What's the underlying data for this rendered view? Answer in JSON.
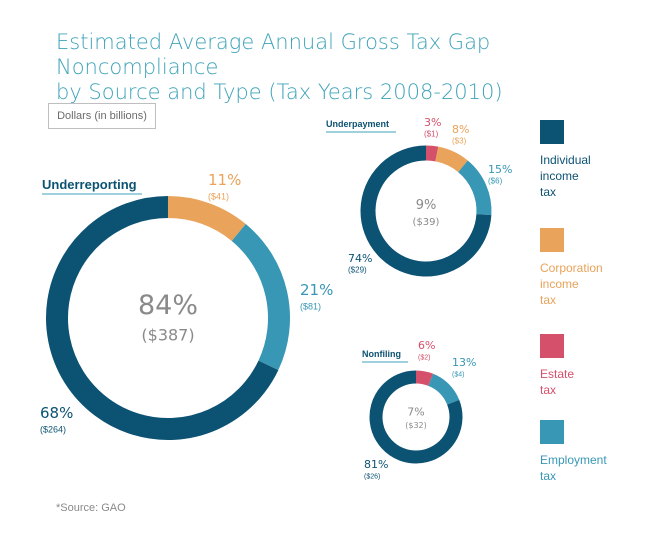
{
  "title_line1": "Estimated Average Annual Gross Tax Gap Noncompliance",
  "title_line2": "by Source and Type (Tax Years 2008-2010)",
  "unit_label": "Dollars (in billions)",
  "source": "*Source: GAO",
  "colors": {
    "individual": "#0c5273",
    "corporation": "#e9a35a",
    "estate": "#d5506b",
    "employment": "#3797b5",
    "title": "#3ea3b8"
  },
  "legend": [
    {
      "key": "individual",
      "label": "Individual\nincome\ntax"
    },
    {
      "key": "corporation",
      "label": "Corporation\nincome\ntax"
    },
    {
      "key": "estate",
      "label": "Estate\ntax"
    },
    {
      "key": "employment",
      "label": "Employment\ntax"
    }
  ],
  "chart_data": [
    {
      "type": "pie",
      "title": "Underreporting",
      "center_pct": "84%",
      "center_value": "($387)",
      "slices": [
        {
          "name": "Corporation income tax",
          "key": "corporation",
          "pct": 11,
          "value": 41,
          "pct_label": "11%",
          "value_label": "($41)"
        },
        {
          "name": "Employment tax",
          "key": "employment",
          "pct": 21,
          "value": 81,
          "pct_label": "21%",
          "value_label": "($81)"
        },
        {
          "name": "Individual income tax",
          "key": "individual",
          "pct": 68,
          "value": 264,
          "pct_label": "68%",
          "value_label": "($264)"
        }
      ]
    },
    {
      "type": "pie",
      "title": "Underpayment",
      "center_pct": "9%",
      "center_value": "($39)",
      "slices": [
        {
          "name": "Estate tax",
          "key": "estate",
          "pct": 3,
          "value": 1,
          "pct_label": "3%",
          "value_label": "($1)"
        },
        {
          "name": "Corporation income tax",
          "key": "corporation",
          "pct": 8,
          "value": 3,
          "pct_label": "8%",
          "value_label": "($3)"
        },
        {
          "name": "Employment tax",
          "key": "employment",
          "pct": 15,
          "value": 6,
          "pct_label": "15%",
          "value_label": "($6)"
        },
        {
          "name": "Individual income tax",
          "key": "individual",
          "pct": 74,
          "value": 29,
          "pct_label": "74%",
          "value_label": "($29)"
        }
      ]
    },
    {
      "type": "pie",
      "title": "Nonfiling",
      "center_pct": "7%",
      "center_value": "($32)",
      "slices": [
        {
          "name": "Estate tax",
          "key": "estate",
          "pct": 6,
          "value": 2,
          "pct_label": "6%",
          "value_label": "($2)"
        },
        {
          "name": "Employment tax",
          "key": "employment",
          "pct": 13,
          "value": 4,
          "pct_label": "13%",
          "value_label": "($4)"
        },
        {
          "name": "Individual income tax",
          "key": "individual",
          "pct": 81,
          "value": 26,
          "pct_label": "81%",
          "value_label": "($26)"
        }
      ]
    }
  ]
}
